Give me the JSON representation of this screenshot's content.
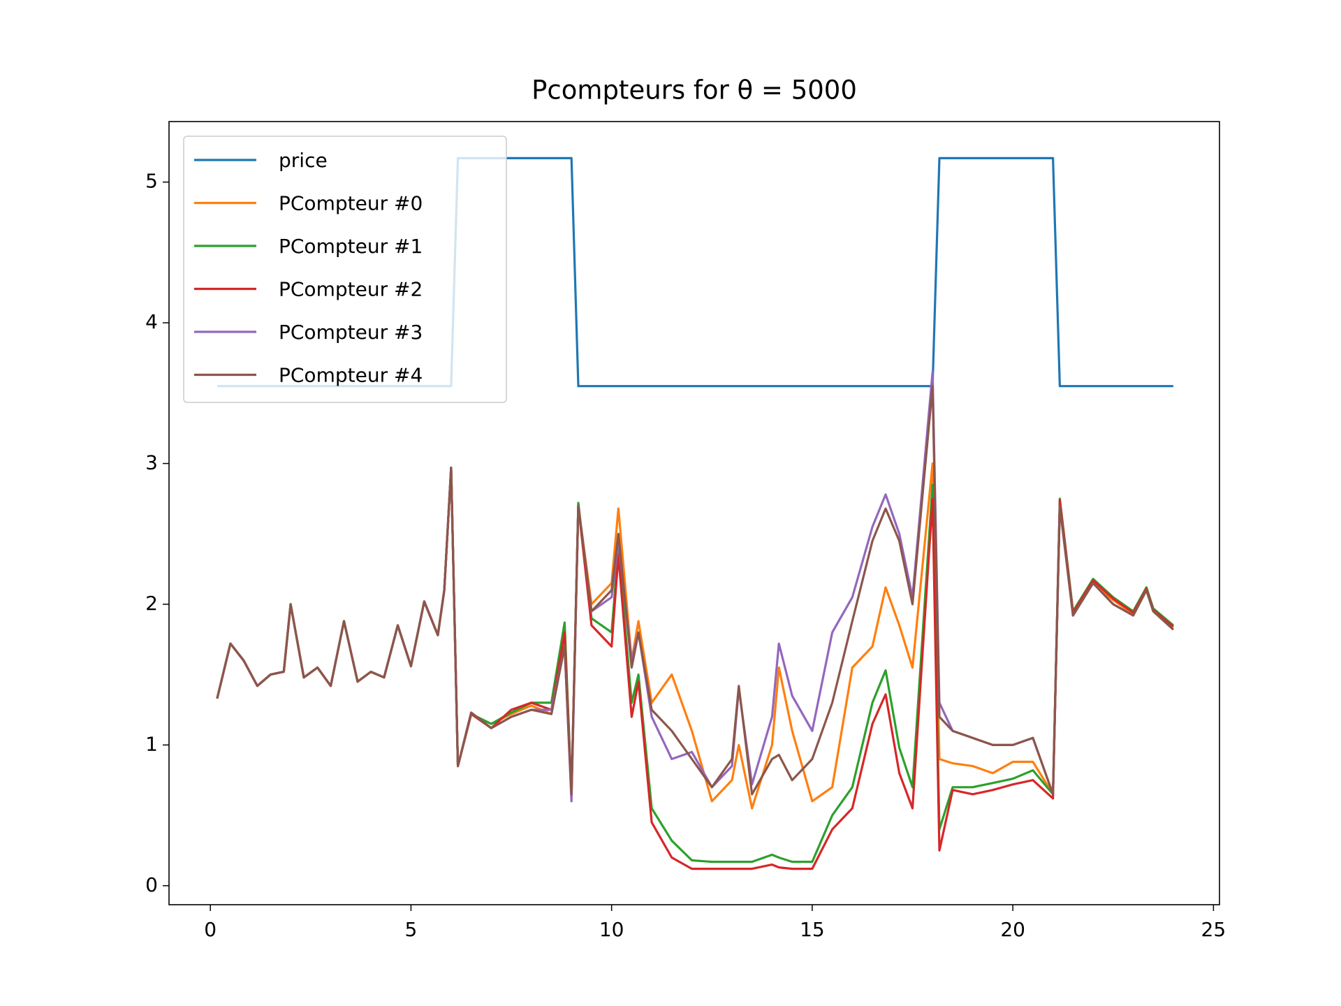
{
  "chart_data": {
    "type": "line",
    "title": "Pcompteurs for θ = 5000",
    "xlim": [
      -1.03,
      25.15
    ],
    "ylim": [
      -0.135,
      5.43
    ],
    "xticks": [
      0,
      5,
      10,
      15,
      20,
      25
    ],
    "yticks": [
      0,
      1,
      2,
      3,
      4,
      5
    ],
    "grid": false,
    "legend": "upper left",
    "x": [
      0.17,
      0.5,
      0.83,
      1.17,
      1.5,
      1.83,
      2,
      2.33,
      2.67,
      3,
      3.33,
      3.67,
      4,
      4.33,
      4.67,
      5,
      5.33,
      5.67,
      5.83,
      6.0,
      6.17,
      6.5,
      7,
      7.5,
      8,
      8.5,
      8.83,
      9.0,
      9.17,
      9.5,
      10,
      10.17,
      10.5,
      10.67,
      11,
      11.5,
      12,
      12.5,
      13,
      13.17,
      13.5,
      14,
      14.17,
      14.5,
      15,
      15.5,
      16,
      16.5,
      16.83,
      17.17,
      17.5,
      18,
      18.17,
      18.5,
      19,
      19.5,
      20,
      20.5,
      21,
      21.17,
      21.5,
      22,
      22.5,
      23,
      23.33,
      23.5,
      24
    ],
    "series": [
      {
        "name": "price",
        "color": "#1f77b4",
        "x": [
          0.17,
          6.0,
          6.17,
          9.0,
          9.17,
          18.0,
          18.17,
          21.0,
          21.17,
          24.0
        ],
        "values": [
          3.55,
          3.55,
          5.17,
          5.17,
          3.55,
          3.55,
          5.17,
          5.17,
          3.55,
          3.55
        ]
      },
      {
        "name": "PCompteur #0",
        "color": "#ff7f0e",
        "values": [
          1.33,
          1.72,
          1.6,
          1.42,
          1.5,
          1.52,
          2.0,
          1.48,
          1.55,
          1.42,
          1.88,
          1.45,
          1.52,
          1.48,
          1.85,
          1.56,
          2.02,
          1.78,
          2.1,
          2.97,
          0.85,
          1.22,
          1.15,
          1.22,
          1.28,
          1.22,
          1.75,
          0.65,
          2.7,
          2.0,
          2.15,
          2.68,
          1.6,
          1.88,
          1.3,
          1.5,
          1.1,
          0.6,
          0.75,
          1.0,
          0.55,
          1.0,
          1.55,
          1.1,
          0.6,
          0.7,
          1.55,
          1.7,
          2.12,
          1.85,
          1.55,
          3.0,
          0.9,
          0.87,
          0.85,
          0.8,
          0.88,
          0.88,
          0.65,
          2.72,
          1.93,
          2.15,
          2.03,
          1.93,
          2.1,
          1.95,
          1.84
        ]
      },
      {
        "name": "PCompteur #1",
        "color": "#2ca02c",
        "values": [
          1.33,
          1.72,
          1.6,
          1.42,
          1.5,
          1.52,
          2.0,
          1.48,
          1.55,
          1.42,
          1.88,
          1.45,
          1.52,
          1.48,
          1.85,
          1.56,
          2.02,
          1.78,
          2.1,
          2.97,
          0.85,
          1.22,
          1.15,
          1.23,
          1.3,
          1.3,
          1.87,
          0.65,
          2.72,
          1.9,
          1.8,
          2.4,
          1.3,
          1.5,
          0.55,
          0.32,
          0.18,
          0.17,
          0.17,
          0.17,
          0.17,
          0.22,
          0.2,
          0.17,
          0.17,
          0.5,
          0.7,
          1.3,
          1.53,
          0.98,
          0.7,
          2.85,
          0.4,
          0.7,
          0.7,
          0.73,
          0.76,
          0.82,
          0.65,
          2.75,
          1.95,
          2.18,
          2.05,
          1.95,
          2.12,
          1.97,
          1.85
        ]
      },
      {
        "name": "PCompteur #2",
        "color": "#d62728",
        "values": [
          1.33,
          1.72,
          1.6,
          1.42,
          1.5,
          1.52,
          2.0,
          1.48,
          1.55,
          1.42,
          1.88,
          1.45,
          1.52,
          1.48,
          1.85,
          1.56,
          2.02,
          1.78,
          2.1,
          2.97,
          0.85,
          1.22,
          1.12,
          1.25,
          1.3,
          1.25,
          1.8,
          0.65,
          2.7,
          1.85,
          1.7,
          2.35,
          1.2,
          1.45,
          0.45,
          0.2,
          0.12,
          0.12,
          0.12,
          0.12,
          0.12,
          0.15,
          0.13,
          0.12,
          0.12,
          0.4,
          0.55,
          1.15,
          1.36,
          0.8,
          0.55,
          2.75,
          0.25,
          0.68,
          0.65,
          0.68,
          0.72,
          0.75,
          0.62,
          2.74,
          1.94,
          2.17,
          2.04,
          1.94,
          2.11,
          1.96,
          1.84
        ]
      },
      {
        "name": "PCompteur #3",
        "color": "#9467bd",
        "values": [
          1.33,
          1.72,
          1.6,
          1.42,
          1.5,
          1.52,
          2.0,
          1.48,
          1.55,
          1.42,
          1.88,
          1.45,
          1.52,
          1.48,
          1.85,
          1.56,
          2.02,
          1.78,
          2.1,
          2.97,
          0.85,
          1.23,
          1.12,
          1.2,
          1.25,
          1.25,
          1.7,
          0.6,
          2.7,
          1.95,
          2.05,
          2.45,
          1.6,
          1.8,
          1.2,
          0.9,
          0.95,
          0.7,
          0.85,
          1.4,
          0.72,
          1.2,
          1.72,
          1.35,
          1.1,
          1.8,
          2.05,
          2.55,
          2.78,
          2.5,
          2.05,
          3.65,
          1.3,
          1.1,
          1.05,
          1.0,
          1.0,
          1.05,
          0.65,
          2.7,
          1.92,
          2.15,
          2.0,
          1.92,
          2.1,
          1.95,
          1.82
        ]
      },
      {
        "name": "PCompteur #4",
        "color": "#8c564b",
        "values": [
          1.33,
          1.72,
          1.6,
          1.42,
          1.5,
          1.52,
          2.0,
          1.48,
          1.55,
          1.42,
          1.88,
          1.45,
          1.52,
          1.48,
          1.85,
          1.56,
          2.02,
          1.78,
          2.1,
          2.97,
          0.85,
          1.23,
          1.12,
          1.2,
          1.25,
          1.22,
          1.7,
          0.65,
          2.7,
          1.95,
          2.1,
          2.5,
          1.55,
          1.8,
          1.25,
          1.1,
          0.9,
          0.7,
          0.9,
          1.42,
          0.65,
          0.9,
          0.93,
          0.75,
          0.9,
          1.3,
          1.88,
          2.45,
          2.68,
          2.45,
          2.0,
          3.55,
          1.2,
          1.1,
          1.05,
          1.0,
          1.0,
          1.05,
          0.65,
          2.7,
          1.92,
          2.15,
          2.0,
          1.92,
          2.1,
          1.95,
          1.82
        ]
      }
    ]
  }
}
